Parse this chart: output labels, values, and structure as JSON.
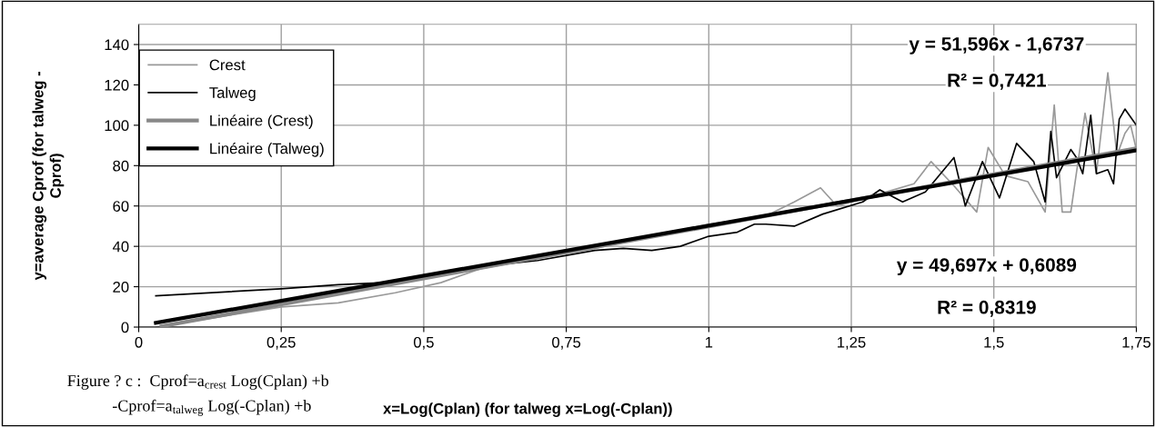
{
  "chart_data": {
    "type": "line",
    "xlabel": "x=Log(Cplan) (for talweg x=Log(-Cplan))",
    "ylabel": "y=average Cprof (for talweg -\nCprof)",
    "xlim": [
      0,
      1.75
    ],
    "ylim": [
      0,
      150
    ],
    "xticks": [
      0,
      {
        "value": 0.25,
        "label": "0,25"
      },
      {
        "value": 0.5,
        "label": "0,5"
      },
      {
        "value": 0.75,
        "label": "0,75"
      },
      1,
      {
        "value": 1.25,
        "label": "1,25"
      },
      {
        "value": 1.5,
        "label": "1,5"
      },
      {
        "value": 1.75,
        "label": "1,75"
      }
    ],
    "yticks": [
      0,
      20,
      40,
      60,
      80,
      100,
      120,
      140
    ],
    "grid": true,
    "legend": "top left",
    "marker": "none",
    "line_style": "solid",
    "series": [
      {
        "name": "Crest",
        "color": "#999999",
        "x": [
          0.03,
          0.25,
          0.35,
          0.45,
          0.53,
          0.6,
          0.7,
          0.8,
          0.9,
          1.0,
          1.1,
          1.15,
          1.196,
          1.225,
          1.3,
          1.36,
          1.39,
          1.43,
          1.47,
          1.49,
          1.52,
          1.56,
          1.59,
          1.606,
          1.62,
          1.635,
          1.66,
          1.68,
          1.7,
          1.716,
          1.73,
          1.74,
          1.75
        ],
        "values": [
          0,
          10,
          12,
          17,
          22,
          29,
          34,
          39,
          45,
          51,
          55,
          62,
          69,
          60,
          66,
          71,
          82,
          70,
          57,
          89,
          75,
          72,
          57,
          110,
          57,
          57,
          106,
          76,
          126,
          85,
          96,
          100,
          88
        ]
      },
      {
        "name": "Talweg",
        "color": "#000000",
        "x": [
          0.03,
          0.25,
          0.3,
          0.35,
          0.43,
          0.5,
          0.6,
          0.7,
          0.8,
          0.85,
          0.9,
          0.95,
          1.0,
          1.05,
          1.08,
          1.1,
          1.15,
          1.2,
          1.27,
          1.3,
          1.34,
          1.38,
          1.43,
          1.45,
          1.48,
          1.51,
          1.54,
          1.57,
          1.59,
          1.6,
          1.61,
          1.635,
          1.645,
          1.656,
          1.67,
          1.68,
          1.7,
          1.71,
          1.72,
          1.73,
          1.75
        ],
        "values": [
          15.5,
          19,
          20,
          21,
          22,
          25,
          30,
          33,
          38,
          39,
          38,
          40,
          45,
          47,
          51,
          51,
          50,
          56,
          62,
          68,
          62,
          67,
          84,
          60,
          82,
          64,
          91,
          82,
          62,
          97,
          74,
          88,
          84,
          76,
          105,
          76,
          78,
          71,
          103,
          108,
          100
        ]
      },
      {
        "name": "Linéaire (Crest)",
        "type": "line",
        "color": "#888888",
        "x": [
          0.04,
          1.75
        ],
        "values": [
          0.4,
          88.6
        ]
      },
      {
        "name": "Linéaire (Talweg)",
        "type": "line",
        "color": "#000000",
        "x": [
          0.03,
          1.75
        ],
        "values": [
          2.1,
          87.6
        ]
      }
    ],
    "annotations": [
      "y = 51,596x - 1,6737",
      "R² = 0,7421",
      "y = 49,697x + 0,6089",
      "R² = 0,8319",
      "Figure ? c :  Cprof=a$_{crest}$ Log(Cplan) +b",
      "-Cprof=a$_{talweg}$ Log(-Cplan) +b"
    ]
  }
}
